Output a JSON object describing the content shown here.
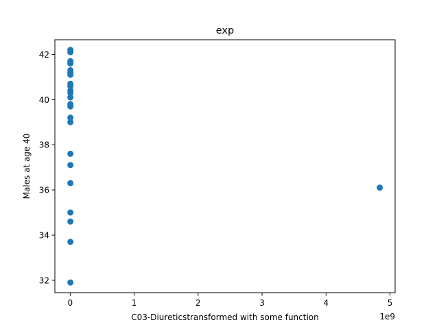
{
  "chart_data": {
    "type": "scatter",
    "title": "exp",
    "xlabel": "C03-Diureticstransformed with some function",
    "ylabel": "Males at age 40",
    "x_offset_label": "1e9",
    "xlim": [
      -0.24,
      5.08
    ],
    "ylim": [
      31.45,
      42.65
    ],
    "x_ticks": [
      0,
      1,
      2,
      3,
      4,
      5
    ],
    "x_tick_labels": [
      "0",
      "1",
      "2",
      "3",
      "4",
      "5"
    ],
    "y_ticks": [
      32,
      34,
      36,
      38,
      40,
      42
    ],
    "y_tick_labels": [
      "32",
      "34",
      "36",
      "38",
      "40",
      "42"
    ],
    "grid": false,
    "marker_color": "#1f77b4",
    "x": [
      0.003,
      0.003,
      0.003,
      0.003,
      0.003,
      0.003,
      0.003,
      0.003,
      0.003,
      0.003,
      0.003,
      0.003,
      0.003,
      0.003,
      0.003,
      0.003,
      0.003,
      0.003,
      0.003,
      0.003,
      0.003,
      0.003,
      0.003,
      0.003,
      4.84
    ],
    "y": [
      42.2,
      42.1,
      41.7,
      41.6,
      41.3,
      41.2,
      41.1,
      40.7,
      40.6,
      40.4,
      40.3,
      40.1,
      39.8,
      39.7,
      39.2,
      39.0,
      37.6,
      37.1,
      36.3,
      35.0,
      34.6,
      33.7,
      31.9,
      41.2,
      36.1
    ]
  }
}
